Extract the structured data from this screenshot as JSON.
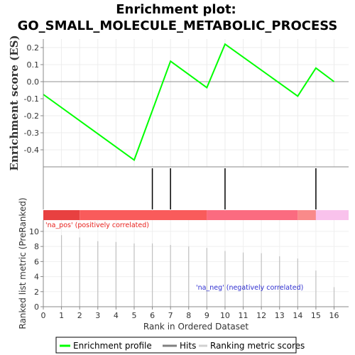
{
  "chart_data": {
    "type": "line",
    "title_line1": "Enrichment plot:",
    "title_line2": "GO_SMALL_MOLECULE_METABOLIC_PROCESS",
    "top_panel": {
      "ylabel": "Enrichment score (ES)",
      "ylim": [
        -0.5,
        0.25
      ],
      "yticks": [
        0.2,
        0.1,
        0.0,
        -0.1,
        -0.2,
        -0.3,
        -0.4
      ],
      "ytick_labels": [
        "0.2",
        "0.1",
        "0.0",
        "-0.1",
        "-0.2",
        "-0.3",
        "-0.4"
      ],
      "grid": true,
      "series": [
        {
          "name": "Enrichment profile",
          "color": "#00ff00",
          "x": [
            0,
            5,
            7,
            9,
            10,
            14,
            15,
            16
          ],
          "y": [
            -0.075,
            -0.46,
            0.12,
            -0.035,
            0.22,
            -0.085,
            0.08,
            0.0
          ]
        }
      ]
    },
    "hits": {
      "x": [
        6,
        7,
        10,
        15
      ],
      "color": "#000000"
    },
    "ranking_bar": {
      "segments": [
        {
          "from": 0,
          "to": 2,
          "color": "#e84040"
        },
        {
          "from": 2,
          "to": 9,
          "color": "#f95b5b"
        },
        {
          "from": 9,
          "to": 14,
          "color": "#fb6b80"
        },
        {
          "from": 14,
          "to": 15,
          "color": "#f98a8a"
        },
        {
          "from": 15,
          "to": 16.8,
          "color": "#f9c2ec"
        }
      ]
    },
    "bottom_panel": {
      "ylabel": "Ranked list metric (PreRanked)",
      "ylim": [
        0,
        11.5
      ],
      "yticks": [
        0,
        2,
        4,
        6,
        8,
        10
      ],
      "ytick_labels": [
        "0",
        "2",
        "4",
        "6",
        "8",
        "10"
      ],
      "xlabel": "Rank in Ordered Dataset",
      "xticks": [
        0,
        1,
        2,
        3,
        4,
        5,
        6,
        7,
        8,
        9,
        10,
        11,
        12,
        13,
        14,
        15,
        16
      ],
      "xtick_labels": [
        "0",
        "1",
        "2",
        "3",
        "4",
        "5",
        "6",
        "7",
        "8",
        "9",
        "10",
        "11",
        "12",
        "13",
        "14",
        "15",
        "16"
      ],
      "xlim": [
        0,
        16.8
      ],
      "series": [
        {
          "name": "Ranking metric scores",
          "color": "#c0c0c0",
          "x": [
            1,
            2,
            3,
            4,
            5,
            6,
            7,
            8,
            9,
            10,
            11,
            12,
            13,
            14,
            15,
            16
          ],
          "y": [
            9.5,
            9.2,
            8.7,
            8.6,
            8.4,
            8.4,
            8.2,
            8.0,
            7.8,
            7.4,
            7.2,
            7.1,
            6.7,
            6.4,
            4.8,
            2.6
          ]
        }
      ],
      "annotation_pos": "'na_pos' (positively correlated)",
      "annotation_neg": "'na_neg' (negatively correlated)"
    },
    "legend": {
      "placement": "bottom",
      "items": [
        {
          "label": "Enrichment profile",
          "color": "#00ff00"
        },
        {
          "label": "Hits",
          "color": "#808080"
        },
        {
          "label": "Ranking metric scores",
          "color": "#d0d0d0"
        }
      ]
    }
  }
}
